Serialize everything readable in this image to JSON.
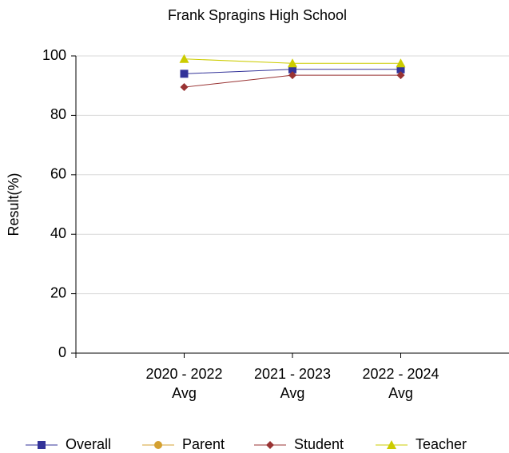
{
  "chart_data": {
    "type": "line",
    "title": "Frank Spragins High School",
    "y_label": "Result(%)",
    "categories": [
      "2020 - 2022 Avg",
      "2021 - 2023 Avg",
      "2022 - 2024 Avg"
    ],
    "series": [
      {
        "name": "Overall",
        "color": "#333399",
        "marker": "square",
        "values": [
          94,
          95.5,
          95.5
        ]
      },
      {
        "name": "Parent",
        "color": "#d4a030",
        "marker": "circle",
        "values": [
          null,
          null,
          null
        ]
      },
      {
        "name": "Student",
        "color": "#993333",
        "marker": "diamond",
        "values": [
          89.5,
          93.5,
          93.5
        ]
      },
      {
        "name": "Teacher",
        "color": "#cccc00",
        "marker": "triangle",
        "values": [
          99,
          97.5,
          97.5
        ]
      }
    ],
    "ylim": [
      0,
      100
    ],
    "yticks": [
      0,
      20,
      40,
      60,
      80,
      100
    ],
    "grid": true,
    "legend": "bottom"
  }
}
